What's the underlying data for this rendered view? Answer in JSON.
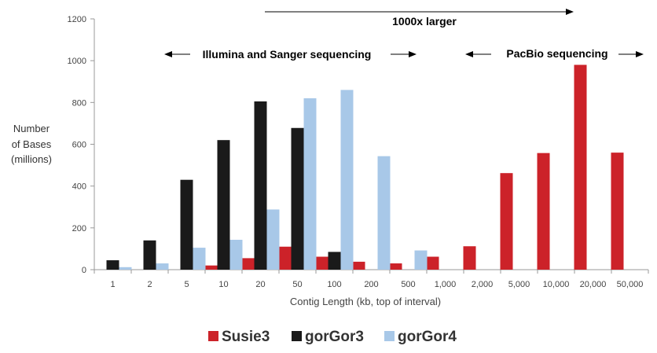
{
  "chart_data": {
    "type": "bar",
    "categories": [
      "1",
      "2",
      "5",
      "10",
      "20",
      "50",
      "100",
      "200",
      "500",
      "1,000",
      "2,000",
      "5,000",
      "10,000",
      "20,000",
      "50,000"
    ],
    "series": [
      {
        "name": "Susie3",
        "color": "#cc2229",
        "values": [
          0,
          0,
          0,
          20,
          55,
          110,
          62,
          38,
          30,
          62,
          112,
          462,
          558,
          980,
          560
        ]
      },
      {
        "name": "gorGor3",
        "color": "#1a1a1a",
        "values": [
          45,
          140,
          430,
          620,
          805,
          678,
          85,
          0,
          0,
          0,
          0,
          0,
          0,
          0,
          0
        ]
      },
      {
        "name": "gorGor4",
        "color": "#a8c8e8",
        "values": [
          12,
          30,
          105,
          143,
          288,
          820,
          860,
          543,
          92,
          0,
          0,
          0,
          0,
          0,
          0
        ]
      }
    ],
    "ylim": [
      0,
      1200
    ],
    "yticks": [
      0,
      200,
      400,
      600,
      800,
      1000,
      1200
    ],
    "ylabel": [
      "Number",
      "of Bases",
      "(millions)"
    ],
    "xlabel": "Contig Length (kb, top of interval)",
    "annotations": {
      "top": "1000x larger",
      "illumina": "Illumina and Sanger sequencing",
      "pacbio": "PacBio sequencing"
    },
    "grid": false,
    "legend_position": "bottom"
  }
}
